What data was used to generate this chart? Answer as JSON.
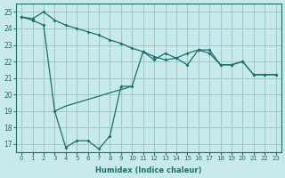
{
  "xlabel": "Humidex (Indice chaleur)",
  "bg_color": "#c8eaea",
  "grid_color": "#a0c8c8",
  "line_color": "#1a7070",
  "ylim": [
    16.5,
    25.5
  ],
  "xlim": [
    -0.5,
    23.5
  ],
  "yticks": [
    17,
    18,
    19,
    20,
    21,
    22,
    23,
    24,
    25
  ],
  "xticks": [
    0,
    1,
    2,
    3,
    4,
    5,
    6,
    7,
    8,
    9,
    10,
    11,
    12,
    13,
    14,
    15,
    16,
    17,
    18,
    19,
    20,
    21,
    22,
    23
  ],
  "line_top": {
    "x": [
      0,
      1,
      2,
      3,
      4,
      5,
      6,
      7,
      8,
      9,
      10,
      11,
      12,
      13,
      14,
      15,
      16,
      17,
      18,
      19,
      20,
      21,
      22,
      23
    ],
    "y": [
      24.7,
      24.6,
      25.0,
      24.5,
      24.2,
      24.0,
      23.8,
      23.6,
      23.3,
      23.1,
      22.8,
      22.6,
      22.3,
      22.1,
      22.2,
      22.5,
      22.7,
      22.5,
      21.8,
      21.8,
      22.0,
      21.2,
      21.2,
      21.2
    ]
  },
  "line_mid": {
    "x": [
      0,
      1,
      2,
      3,
      4,
      5,
      6,
      7,
      8,
      9,
      10,
      11,
      12,
      13,
      14,
      15,
      16,
      17,
      18,
      19,
      20,
      21,
      22,
      23
    ],
    "y": [
      24.7,
      24.5,
      24.2,
      19.0,
      16.8,
      17.2,
      17.2,
      16.7,
      17.5,
      20.5,
      20.5,
      22.6,
      22.1,
      22.5,
      22.2,
      21.8,
      22.7,
      22.7,
      21.8,
      21.8,
      22.0,
      21.2,
      21.2,
      21.2
    ]
  },
  "line_bot": {
    "x": [
      0,
      1,
      2,
      3,
      4,
      5,
      6,
      7,
      8,
      9,
      10,
      11,
      12,
      13,
      14,
      15,
      16,
      17,
      18,
      19,
      20,
      21,
      22,
      23
    ],
    "y": [
      null,
      null,
      null,
      19.0,
      16.8,
      17.2,
      17.2,
      16.7,
      17.5,
      19.6,
      20.5,
      null,
      null,
      null,
      null,
      null,
      null,
      null,
      null,
      null,
      null,
      null,
      null,
      null
    ]
  },
  "line_bot2": {
    "x": [
      3,
      4,
      5,
      6,
      7,
      8,
      9,
      10,
      11,
      12,
      13,
      14,
      15,
      16,
      17,
      18,
      19,
      20,
      21,
      22,
      23
    ],
    "y": [
      19.0,
      19.3,
      19.5,
      19.7,
      19.9,
      20.1,
      20.3,
      20.5,
      null,
      null,
      null,
      null,
      null,
      null,
      null,
      null,
      null,
      null,
      null,
      null,
      null
    ]
  }
}
